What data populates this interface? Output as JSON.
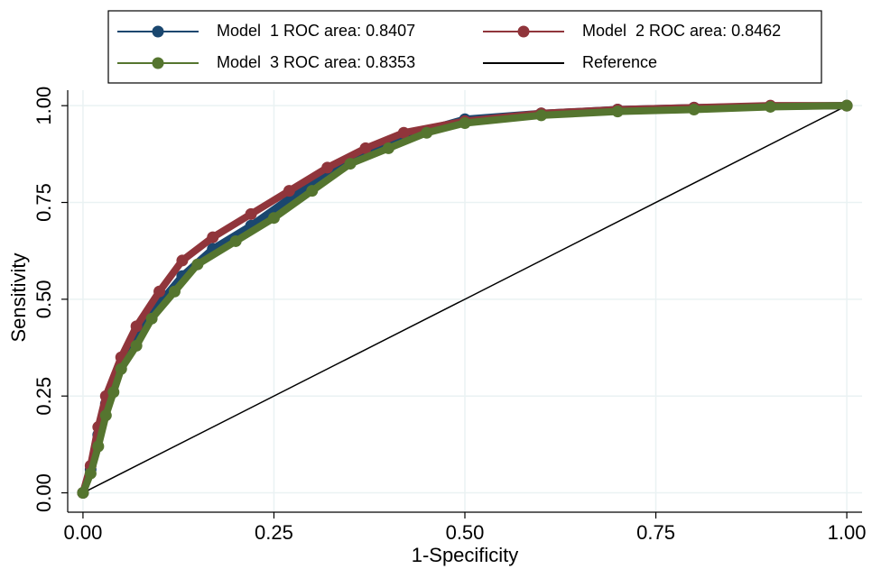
{
  "chart_data": {
    "type": "line",
    "xlabel": "1-Specificity",
    "ylabel": "Sensitivity",
    "xlim": [
      -0.02,
      1.02
    ],
    "ylim": [
      -0.05,
      1.04
    ],
    "xticks": [
      {
        "value": 0,
        "label": "0.00"
      },
      {
        "value": 0.25,
        "label": "0.25"
      },
      {
        "value": 0.5,
        "label": "0.50"
      },
      {
        "value": 0.75,
        "label": "0.75"
      },
      {
        "value": 1,
        "label": "1.00"
      }
    ],
    "yticks": [
      {
        "value": 0,
        "label": "0.00"
      },
      {
        "value": 0.25,
        "label": "0.25"
      },
      {
        "value": 0.5,
        "label": "0.50"
      },
      {
        "value": 0.75,
        "label": "0.75"
      },
      {
        "value": 1,
        "label": "1.00"
      }
    ],
    "grid": true,
    "legend": "top",
    "series": [
      {
        "name": "Model  1 ROC area: 0.8407",
        "color": "#1a476f",
        "marker": true,
        "x": [
          0,
          0.01,
          0.02,
          0.03,
          0.05,
          0.07,
          0.1,
          0.13,
          0.17,
          0.22,
          0.27,
          0.32,
          0.37,
          0.42,
          0.5,
          0.6,
          0.7,
          0.8,
          0.9,
          1
        ],
        "values": [
          0,
          0.06,
          0.15,
          0.23,
          0.33,
          0.41,
          0.49,
          0.56,
          0.63,
          0.69,
          0.76,
          0.83,
          0.88,
          0.92,
          0.965,
          0.98,
          0.99,
          0.995,
          0.998,
          1
        ]
      },
      {
        "name": "Model  2 ROC area: 0.8462",
        "color": "#90353b",
        "marker": true,
        "x": [
          0,
          0.01,
          0.02,
          0.03,
          0.05,
          0.07,
          0.1,
          0.13,
          0.17,
          0.22,
          0.27,
          0.32,
          0.37,
          0.42,
          0.5,
          0.6,
          0.7,
          0.8,
          0.9,
          1
        ],
        "values": [
          0,
          0.07,
          0.17,
          0.25,
          0.35,
          0.43,
          0.52,
          0.6,
          0.66,
          0.72,
          0.78,
          0.84,
          0.89,
          0.93,
          0.96,
          0.98,
          0.99,
          0.995,
          1,
          1
        ]
      },
      {
        "name": "Model  3 ROC area: 0.8353",
        "color": "#55752f",
        "marker": true,
        "x": [
          0,
          0.01,
          0.02,
          0.03,
          0.04,
          0.05,
          0.07,
          0.09,
          0.12,
          0.15,
          0.2,
          0.25,
          0.3,
          0.35,
          0.4,
          0.45,
          0.5,
          0.6,
          0.7,
          0.8,
          0.9,
          1
        ],
        "values": [
          0,
          0.05,
          0.12,
          0.2,
          0.26,
          0.32,
          0.38,
          0.45,
          0.52,
          0.59,
          0.65,
          0.71,
          0.78,
          0.85,
          0.89,
          0.93,
          0.955,
          0.975,
          0.985,
          0.99,
          0.997,
          1
        ]
      },
      {
        "name": "Reference",
        "color": "#000000",
        "marker": false,
        "x": [
          0,
          1
        ],
        "values": [
          0,
          1
        ]
      }
    ]
  }
}
